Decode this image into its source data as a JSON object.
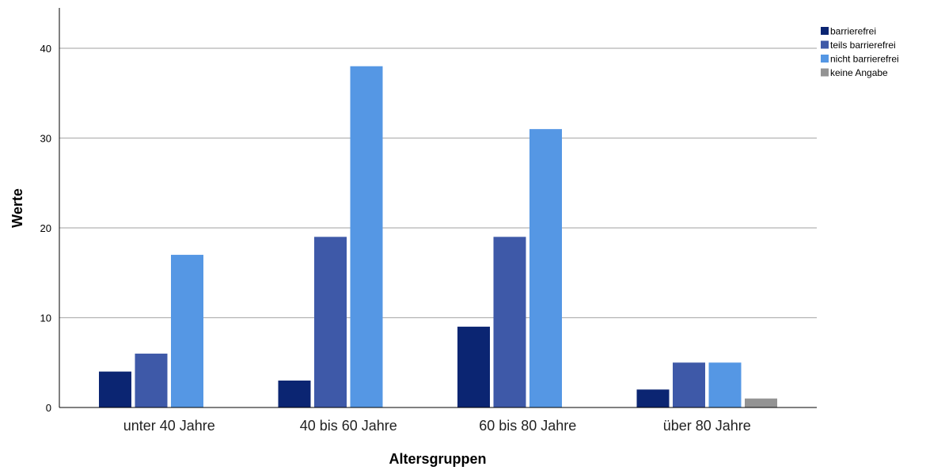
{
  "chart_data": {
    "type": "bar",
    "xlabel": "Altersgruppen",
    "ylabel": "Werte",
    "categories": [
      "unter 40 Jahre",
      "40 bis 60 Jahre",
      "60 bis 80 Jahre",
      "über 80 Jahre"
    ],
    "series": [
      {
        "name": "barrierefrei",
        "color": "#0b2572",
        "values": [
          4,
          3,
          9,
          2
        ]
      },
      {
        "name": "teils barrierefrei",
        "color": "#3e59a8",
        "values": [
          6,
          19,
          19,
          5
        ]
      },
      {
        "name": "nicht barrierefrei",
        "color": "#5597e4",
        "values": [
          17,
          38,
          31,
          5
        ]
      },
      {
        "name": "keine Angabe",
        "color": "#939393",
        "values": [
          null,
          null,
          null,
          1
        ]
      }
    ],
    "yticks": [
      0,
      10,
      20,
      30,
      40
    ],
    "ylim": [
      0,
      44.5
    ],
    "grid": true,
    "legend_position": "top-right"
  }
}
